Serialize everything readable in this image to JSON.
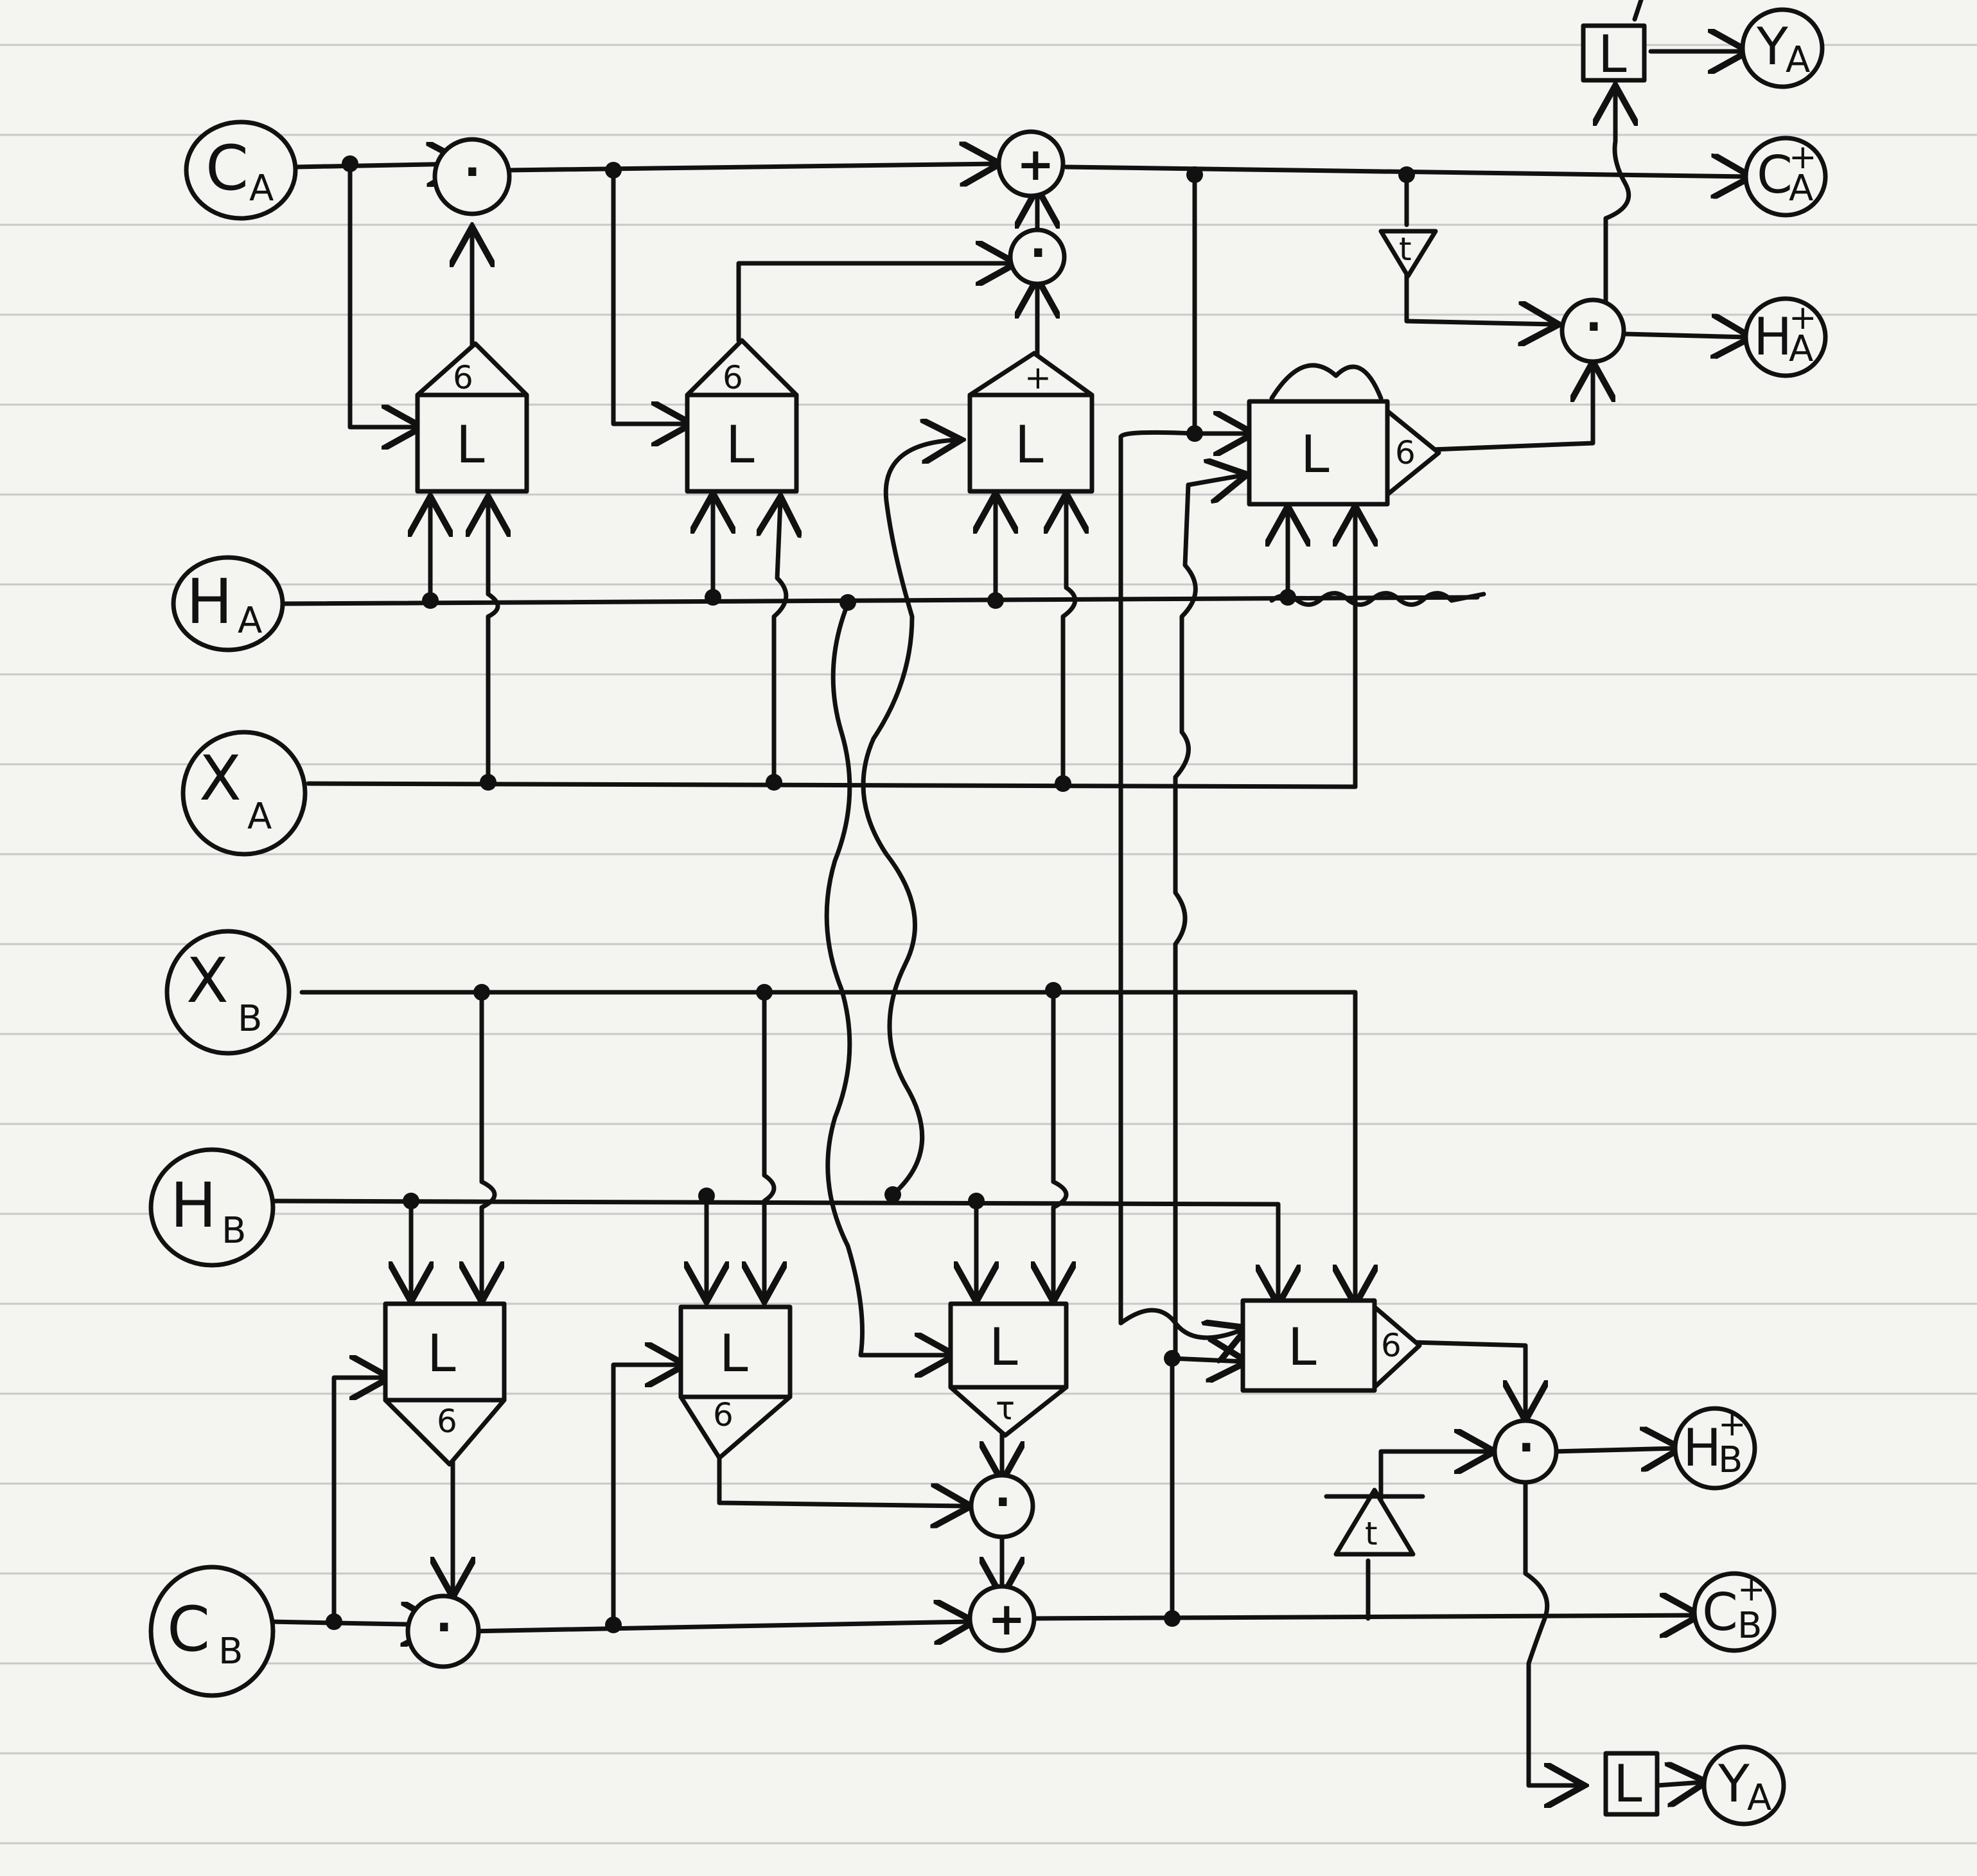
{
  "inputs": {
    "c_a": {
      "main": "C",
      "sub": "A"
    },
    "h_a": {
      "main": "H",
      "sub": "A"
    },
    "x_a": {
      "main": "X",
      "sub": "A"
    },
    "x_b": {
      "main": "X",
      "sub": "B"
    },
    "h_b": {
      "main": "H",
      "sub": "B"
    },
    "c_b": {
      "main": "C",
      "sub": "B"
    }
  },
  "outputs": {
    "y_a_top": {
      "main": "Y",
      "sub": "A"
    },
    "c_a_next": {
      "main": "C",
      "sub": "A",
      "sup": "+"
    },
    "h_a_next": {
      "main": "H",
      "sub": "A",
      "sup": "+"
    },
    "h_b_next": {
      "main": "H",
      "sub": "B",
      "sup": "+"
    },
    "c_b_next": {
      "main": "C",
      "sub": "B",
      "sup": "+"
    },
    "y_a_bottom": {
      "main": "Y",
      "sub": "A"
    }
  },
  "blocks": {
    "linear": "L",
    "sigma": "6",
    "tanh": "t",
    "tanh_alt": "τ",
    "plus": "+",
    "times": "·"
  },
  "colors": {
    "ink": "#111111",
    "paper": "#f4f4f1",
    "rule": "#c9c9c9"
  }
}
